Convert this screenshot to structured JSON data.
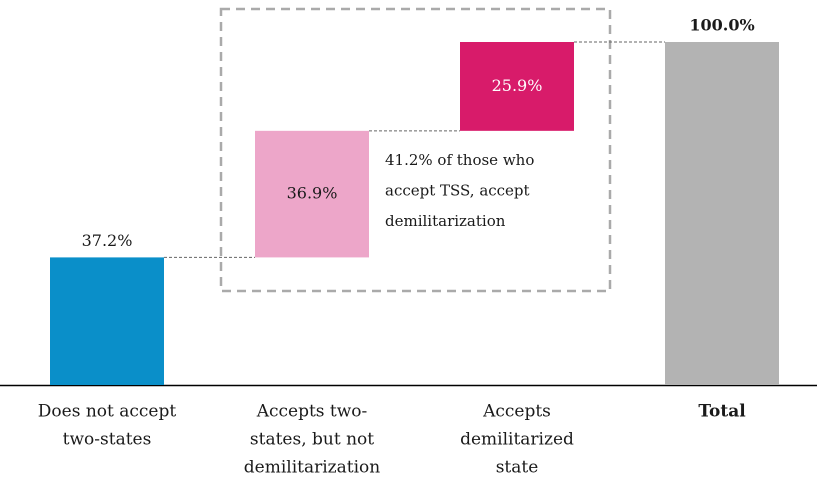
{
  "chart_data": {
    "type": "waterfall",
    "categories": [
      [
        "Does not accept",
        "two-states"
      ],
      [
        "Accepts two-",
        "states, but not",
        "demilitarization"
      ],
      [
        "Accepts",
        "demilitarized",
        "state"
      ],
      [
        "Total"
      ]
    ],
    "values": [
      37.2,
      36.9,
      25.9,
      100
    ],
    "value_labels": [
      "37.2%",
      "36.9%",
      "25.9%",
      "100.0%"
    ],
    "measure": [
      "relative",
      "relative",
      "relative",
      "total"
    ],
    "colors": [
      "#0a8fc9",
      "#eda6c9",
      "#d81b6a",
      "#b3b3b3"
    ],
    "ylim": [
      0,
      100
    ],
    "annotation": [
      "41.2% of those who",
      "accept TSS, accept",
      "demilitarization"
    ]
  }
}
